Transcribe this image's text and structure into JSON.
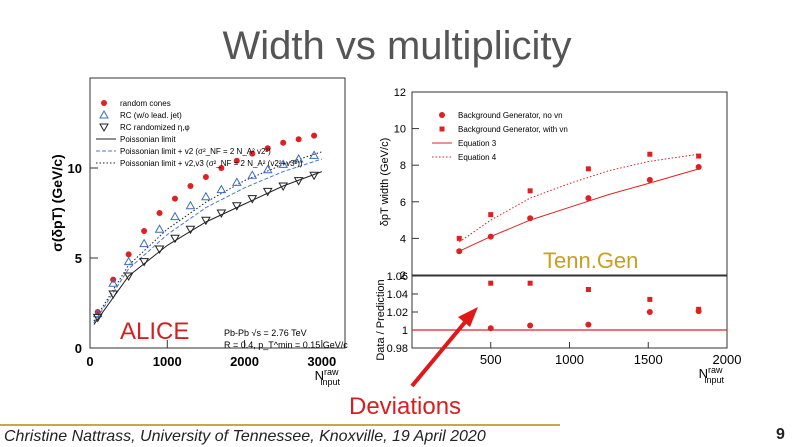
{
  "slide": {
    "title": "Width vs multiplicity",
    "footer": "Christine Nattrass, University of Tennessee, Knoxville, 19 April 2020",
    "page_number": "9",
    "annotations": {
      "tenngen": "Tenn.Gen",
      "alice": "ALICE",
      "deviations": "Deviations"
    },
    "colors": {
      "title": "#555555",
      "annotation_red": "#d62020",
      "tenngen_gold": "#c8a020",
      "footer_line": "#c8a64a"
    }
  },
  "chart_data": [
    {
      "type": "scatter",
      "panel": "ALICE",
      "ylabel": "σ(δpT) (GeV/c)",
      "xlabel": "N_input^raw",
      "x_ticks": [
        "0",
        "1000",
        "2000",
        "3000"
      ],
      "y_ticks": [
        "0",
        "5",
        "10"
      ],
      "xlim": [
        0,
        3300
      ],
      "ylim": [
        0,
        15
      ],
      "legend": [
        "random cones",
        "RC (w/o lead. jet)",
        "RC randomized η,φ",
        "Poissonian limit",
        "Poissonian limit + v2 (σ²_NF = 2 N_A² v2²)",
        "Poissonian limit + v2,v3 (σ²_NF = 2 N_A² (v2²+v3²))"
      ],
      "info_text": [
        "Pb-Pb √s = 2.76 TeV",
        "R = 0.4, p_T^min = 0.15 GeV/c"
      ],
      "series": [
        {
          "name": "random cones",
          "marker": "circle",
          "color": "#e02020",
          "x": [
            100,
            300,
            500,
            700,
            900,
            1100,
            1300,
            1500,
            1700,
            1900,
            2100,
            2300,
            2500,
            2700,
            2900
          ],
          "y": [
            2.0,
            3.8,
            5.2,
            6.5,
            7.5,
            8.3,
            9.0,
            9.5,
            10.0,
            10.4,
            10.8,
            11.1,
            11.4,
            11.6,
            11.8
          ]
        },
        {
          "name": "RC (w/o lead. jet)",
          "marker": "triangle-up",
          "color": "#3a6fc0",
          "x": [
            100,
            300,
            500,
            700,
            900,
            1100,
            1300,
            1500,
            1700,
            1900,
            2100,
            2300,
            2500,
            2700,
            2900
          ],
          "y": [
            1.9,
            3.6,
            4.8,
            5.8,
            6.6,
            7.3,
            7.9,
            8.4,
            8.8,
            9.2,
            9.6,
            9.9,
            10.2,
            10.5,
            10.7
          ]
        },
        {
          "name": "RC randomized η,φ",
          "marker": "triangle-down",
          "color": "#222222",
          "x": [
            100,
            300,
            500,
            700,
            900,
            1100,
            1300,
            1500,
            1700,
            1900,
            2100,
            2300,
            2500,
            2700,
            2900
          ],
          "y": [
            1.7,
            3.0,
            4.0,
            4.8,
            5.5,
            6.1,
            6.6,
            7.1,
            7.5,
            7.9,
            8.3,
            8.7,
            9.0,
            9.3,
            9.6
          ]
        },
        {
          "name": "Poissonian limit",
          "style": "solid",
          "color": "#222222",
          "x": [
            50,
            500,
            1000,
            1500,
            2000,
            2500,
            3000
          ],
          "y": [
            1.3,
            4.0,
            5.7,
            7.0,
            8.0,
            9.0,
            9.8
          ]
        },
        {
          "name": "Poissonian limit + v2",
          "style": "dashed",
          "color": "#4a7acc",
          "x": [
            50,
            500,
            1000,
            1500,
            2000,
            2500,
            3000
          ],
          "y": [
            1.4,
            4.4,
            6.3,
            7.8,
            8.9,
            9.8,
            10.5
          ]
        },
        {
          "name": "Poissonian limit + v2,v3",
          "style": "dotted",
          "color": "#222222",
          "x": [
            50,
            500,
            1000,
            1500,
            2000,
            2500,
            3000
          ],
          "y": [
            1.5,
            4.6,
            6.6,
            8.1,
            9.3,
            10.2,
            10.9
          ]
        }
      ]
    },
    {
      "type": "scatter",
      "panel": "TennGen",
      "ylabel": "δpT width (GeV/c)",
      "xlabel": "N_input^raw",
      "x_ticks": [
        "500",
        "1000",
        "1500",
        "2000"
      ],
      "y_ticks": [
        "2",
        "4",
        "6",
        "8",
        "10",
        "12"
      ],
      "xlim": [
        0,
        2000
      ],
      "ylim": [
        2,
        12
      ],
      "legend": [
        "Background Generator, no vn",
        "Background Generator, with vn",
        "Equation 3",
        "Equation 4"
      ],
      "series": [
        {
          "name": "Background Generator, no vn",
          "marker": "circle",
          "color": "#e02020",
          "x": [
            300,
            500,
            750,
            1120,
            1510,
            1820
          ],
          "y": [
            3.3,
            4.1,
            5.1,
            6.2,
            7.2,
            7.9
          ]
        },
        {
          "name": "Background Generator, with vn",
          "marker": "square",
          "color": "#e02020",
          "x": [
            300,
            500,
            750,
            1120,
            1510,
            1820
          ],
          "y": [
            4.0,
            5.3,
            6.6,
            7.8,
            8.6,
            8.5
          ]
        },
        {
          "name": "Equation 3",
          "style": "solid",
          "color": "#e02020",
          "x": [
            300,
            500,
            750,
            1000,
            1250,
            1500,
            1820
          ],
          "y": [
            3.3,
            4.1,
            5.0,
            5.7,
            6.4,
            7.0,
            7.8
          ]
        },
        {
          "name": "Equation 4",
          "style": "dotted",
          "color": "#e02020",
          "x": [
            300,
            500,
            750,
            1000,
            1250,
            1500,
            1820
          ],
          "y": [
            3.8,
            5.0,
            6.2,
            7.0,
            7.7,
            8.2,
            8.6
          ]
        }
      ]
    },
    {
      "type": "scatter",
      "panel": "TennGen ratio",
      "ylabel": "Data / Prediction",
      "x_ticks": [
        "500",
        "1000",
        "1500",
        "2000"
      ],
      "y_ticks": [
        "0.98",
        "1",
        "1.02",
        "1.04",
        "1.06"
      ],
      "xlim": [
        0,
        2000
      ],
      "ylim": [
        0.98,
        1.06
      ],
      "reference_line": 1,
      "series": [
        {
          "name": "with vn / Equation 4",
          "marker": "square",
          "color": "#e02020",
          "x": [
            500,
            750,
            1120,
            1510,
            1820
          ],
          "y": [
            1.052,
            1.052,
            1.045,
            1.034,
            1.023
          ]
        },
        {
          "name": "no vn / Equation 3",
          "marker": "circle",
          "color": "#e02020",
          "x": [
            500,
            750,
            1120,
            1510,
            1820
          ],
          "y": [
            1.002,
            1.005,
            1.006,
            1.02,
            1.021
          ]
        }
      ]
    }
  ]
}
